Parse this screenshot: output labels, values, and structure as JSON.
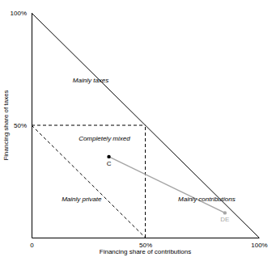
{
  "chart_data": {
    "type": "scatter",
    "x_label": "Financing share of contributions",
    "y_label": "Financing share of taxes",
    "xlim": [
      0,
      100
    ],
    "ylim": [
      0,
      100
    ],
    "xticks": [
      0,
      {
        "value": 50,
        "label": "50%"
      },
      {
        "value": 100,
        "label": "100%"
      }
    ],
    "yticks": [
      {
        "value": 50,
        "label": "50%"
      },
      {
        "value": 100,
        "label": "100%"
      }
    ],
    "series": [
      {
        "x": [
          34,
          85
        ],
        "values": [
          36,
          11
        ],
        "labels": [
          "C",
          "DE"
        ],
        "colors": [
          "#000000",
          "#a6a6a6"
        ],
        "color": "#a6a6a6",
        "marker": "circle",
        "line_style": "solid"
      }
    ],
    "dividers": [
      {
        "x": [
          0,
          50
        ],
        "y": [
          50,
          50
        ]
      },
      {
        "x": [
          50,
          50
        ],
        "y": [
          0,
          50
        ]
      },
      {
        "x": [
          0,
          50
        ],
        "y": [
          50,
          0
        ]
      }
    ],
    "annotations": [
      {
        "text": "Mainly taxes",
        "x": 26,
        "y": 70
      },
      {
        "text": "Completely mixed",
        "x": 32,
        "y": 44
      },
      {
        "text": "Mainly private",
        "x": 22,
        "y": 17
      },
      {
        "text": "Mainly contributions",
        "x": 77,
        "y": 17
      }
    ]
  }
}
